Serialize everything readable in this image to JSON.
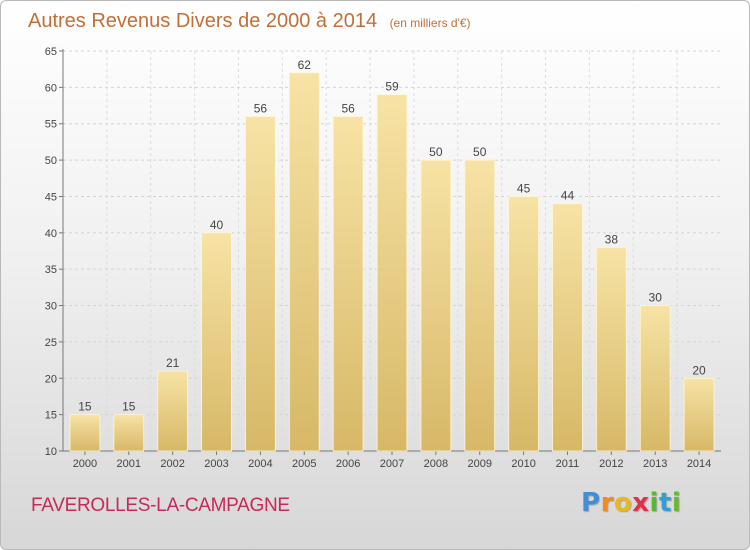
{
  "chart_data": {
    "type": "bar",
    "title": "Autres Revenus Divers de 2000 à 2014",
    "unit_label": "(en milliers d'€)",
    "categories": [
      "2000",
      "2001",
      "2002",
      "2003",
      "2004",
      "2005",
      "2006",
      "2007",
      "2008",
      "2009",
      "2010",
      "2011",
      "2012",
      "2013",
      "2014"
    ],
    "values": [
      15,
      15,
      21,
      40,
      56,
      62,
      56,
      59,
      50,
      50,
      45,
      44,
      38,
      30,
      20
    ],
    "ylim": [
      10,
      65
    ],
    "yticks": [
      10,
      15,
      20,
      25,
      30,
      35,
      40,
      45,
      50,
      55,
      60,
      65
    ],
    "grid": true,
    "xlabel": "",
    "ylabel": "",
    "colors": {
      "bar_light": "#f7e3a5",
      "bar_dark": "#d7b867",
      "title": "#c46e37",
      "place": "#c9295a"
    }
  },
  "footer": {
    "place": "FAVEROLLES-LA-CAMPAGNE",
    "logo_letters": [
      "P",
      "r",
      "o",
      "x",
      "i",
      "t",
      "i"
    ],
    "logo_colors": [
      "#3f8ed8",
      "#f08a24",
      "#e8b820",
      "#e0304a",
      "#58b82f",
      "#2f9fd8",
      "#6ab82f"
    ]
  }
}
